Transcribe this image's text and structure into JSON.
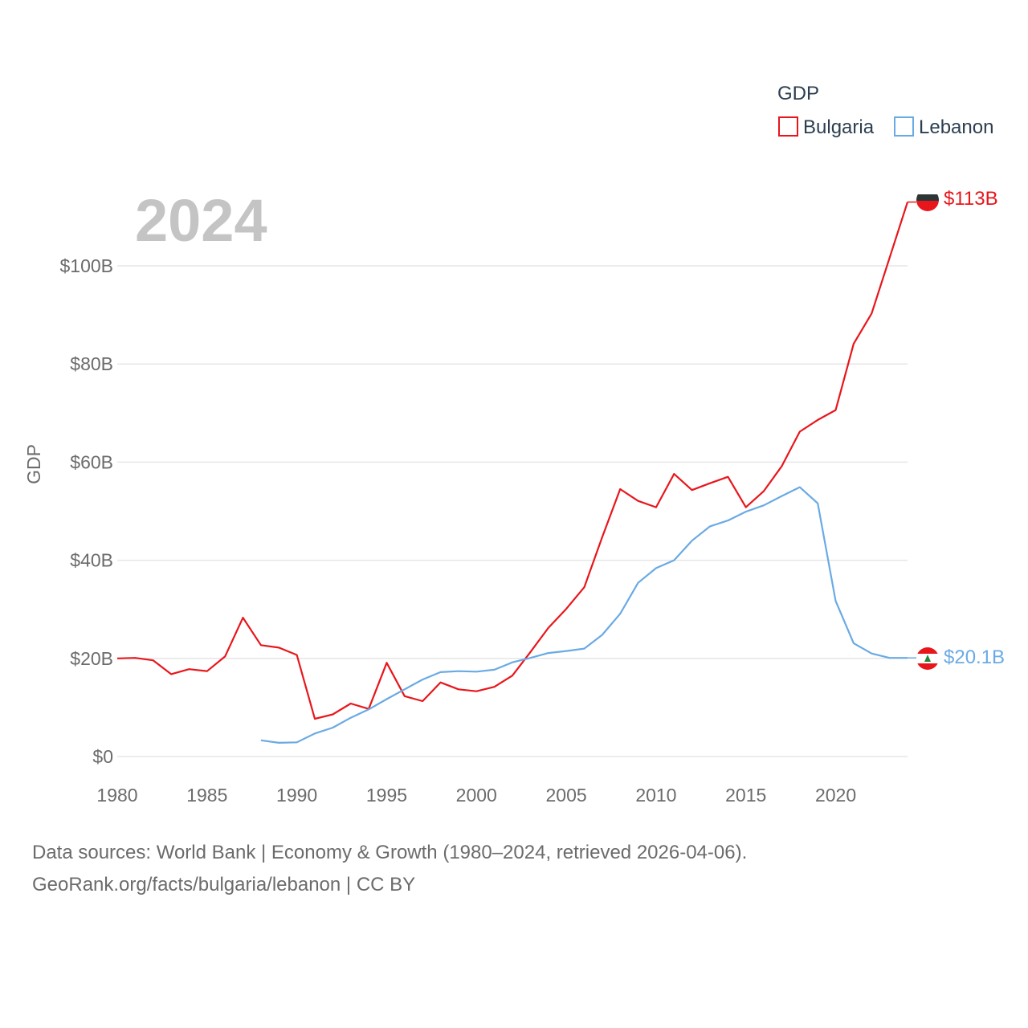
{
  "chart_data": {
    "type": "line",
    "title": "",
    "year_label": "2024",
    "ylabel": "GDP",
    "xlabel": "",
    "xlim": [
      1980,
      2024
    ],
    "ylim": [
      0,
      115
    ],
    "x_ticks": [
      "1980",
      "1985",
      "1990",
      "1995",
      "2000",
      "2005",
      "2010",
      "2015",
      "2020"
    ],
    "y_ticks": [
      {
        "value": 0,
        "label": "$0"
      },
      {
        "value": 20,
        "label": "$20B"
      },
      {
        "value": 40,
        "label": "$40B"
      },
      {
        "value": 60,
        "label": "$60B"
      },
      {
        "value": 80,
        "label": "$80B"
      },
      {
        "value": 100,
        "label": "$100B"
      }
    ],
    "legend": {
      "title": "GDP",
      "position": "top-right"
    },
    "series": [
      {
        "name": "Bulgaria",
        "color": "#e8161b",
        "end_label": "$113B",
        "x": [
          1980,
          1981,
          1982,
          1983,
          1984,
          1985,
          1986,
          1987,
          1988,
          1989,
          1990,
          1991,
          1992,
          1993,
          1994,
          1995,
          1996,
          1997,
          1998,
          1999,
          2000,
          2001,
          2002,
          2003,
          2004,
          2005,
          2006,
          2007,
          2008,
          2009,
          2010,
          2011,
          2012,
          2013,
          2014,
          2015,
          2016,
          2017,
          2018,
          2019,
          2020,
          2021,
          2022,
          2023,
          2024
        ],
        "values": [
          20.0,
          20.1,
          19.6,
          16.8,
          17.8,
          17.4,
          20.4,
          28.3,
          22.7,
          22.2,
          20.7,
          7.7,
          8.6,
          10.8,
          9.7,
          19.1,
          12.3,
          11.3,
          15.1,
          13.7,
          13.3,
          14.2,
          16.5,
          21.3,
          26.2,
          30.1,
          34.5,
          44.7,
          54.5,
          52.1,
          50.8,
          57.6,
          54.3,
          55.7,
          57.0,
          50.8,
          54.1,
          59.2,
          66.2,
          68.6,
          70.6,
          84.1,
          90.3,
          101.6,
          113.0
        ]
      },
      {
        "name": "Lebanon",
        "color": "#6aaae4",
        "end_label": "$20.1B",
        "x": [
          1988,
          1989,
          1990,
          1991,
          1992,
          1993,
          1994,
          1995,
          1996,
          1997,
          1998,
          1999,
          2000,
          2001,
          2002,
          2003,
          2004,
          2005,
          2006,
          2007,
          2008,
          2009,
          2010,
          2011,
          2012,
          2013,
          2014,
          2015,
          2016,
          2017,
          2018,
          2019,
          2020,
          2021,
          2022,
          2023,
          2024
        ],
        "values": [
          3.3,
          2.8,
          2.9,
          4.7,
          5.9,
          7.9,
          9.6,
          11.7,
          13.7,
          15.7,
          17.2,
          17.4,
          17.3,
          17.7,
          19.2,
          20.1,
          21.1,
          21.5,
          22.0,
          24.8,
          29.1,
          35.4,
          38.4,
          40.0,
          44.0,
          46.9,
          48.1,
          49.9,
          51.2,
          53.1,
          54.9,
          51.6,
          31.7,
          23.1,
          21.0,
          20.1,
          20.1
        ]
      }
    ]
  },
  "footer": {
    "line1": "Data sources: World Bank | Economy & Growth (1980–2024, retrieved 2026-04-06).",
    "line2": "GeoRank.org/facts/bulgaria/lebanon | CC BY"
  }
}
